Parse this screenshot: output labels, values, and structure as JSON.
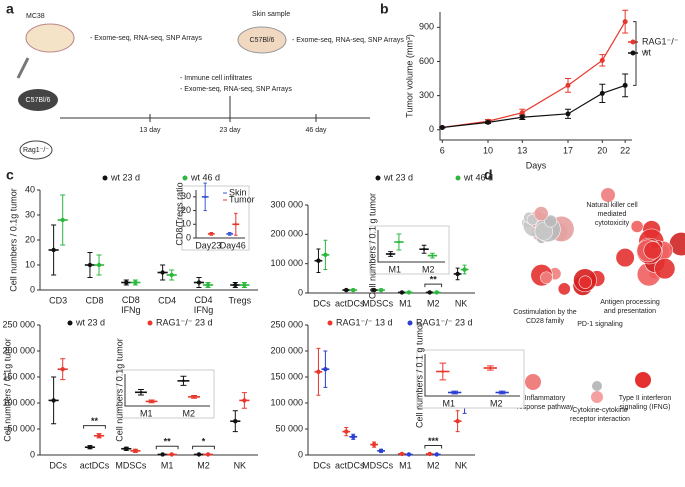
{
  "panel_labels": [
    "a",
    "b",
    "c",
    "d"
  ],
  "diagram": {
    "mc38": "MC38",
    "mc38_assays": "- Exome-seq, RNA-seq, SNP Arrays",
    "skin": "Skin sample",
    "skin_strain": "C57Bl/6",
    "skin_assays": "- Exome-seq, RNA-seq, SNP Arrays",
    "mouse_strain": "C57Bl/6",
    "rag": "Rag1⁻/⁻",
    "tumor_assays": [
      "- Immune cell infiltrates",
      "- Exome-seq, RNA-seq, SNP Arrays"
    ],
    "timepoints": [
      "13 day",
      "23 day",
      "46 day"
    ]
  },
  "network": {
    "labels": [
      [
        "Natural killer cell",
        "mediated",
        "cytotoxicity"
      ],
      [
        "Antigen processing",
        "and presentation"
      ],
      [
        "Costimulation by the",
        "CD28 family"
      ],
      [
        "PD-1 signaling"
      ],
      [
        "Inflammatory",
        "response pathway"
      ],
      [
        "Cytokine-cytokine",
        "receptor interaction"
      ],
      [
        "Type II interferon",
        "signaling (IFNG)"
      ]
    ]
  },
  "chart_data": [
    {
      "type": "line",
      "xlabel": "Days",
      "ylabel": "Tumor volume (mm³)",
      "x": [
        6,
        10,
        13,
        17,
        20,
        22
      ],
      "xlim": [
        5.8,
        22.6
      ],
      "xticks": [
        6,
        10,
        13,
        17,
        20,
        22
      ],
      "ylim": [
        -90,
        1035
      ],
      "yticks": [
        0,
        300,
        600,
        900
      ],
      "series": [
        {
          "name": "RAG1⁻/⁻",
          "color": "#e8372c",
          "values": [
            20,
            75,
            150,
            390,
            610,
            950
          ],
          "errors": [
            5,
            15,
            30,
            60,
            50,
            100
          ]
        },
        {
          "name": "wt",
          "color": "#111111",
          "values": [
            20,
            65,
            110,
            140,
            320,
            390
          ],
          "errors": [
            5,
            10,
            20,
            40,
            80,
            100
          ]
        }
      ],
      "annotations": [
        {
          "text": "*"
        }
      ]
    },
    {
      "type": "dot",
      "ylabel": "Cell numbers / 0.1g tumor",
      "categories": [
        "CD3",
        "CD8",
        "CD8 IFNg",
        "CD4",
        "CD4 IFNg",
        "Tregs"
      ],
      "ylim": [
        0,
        40
      ],
      "yticks": [
        0,
        10,
        20,
        30,
        40
      ],
      "series": [
        {
          "name": "wt 23 d",
          "color": "#111111",
          "values": [
            16,
            10,
            3,
            7,
            3,
            2
          ],
          "errors": [
            10,
            5,
            1,
            3,
            2,
            1
          ]
        },
        {
          "name": "wt 46 d",
          "color": "#2db83d",
          "values": [
            28,
            10,
            3,
            6,
            2,
            2
          ],
          "errors": [
            10,
            4,
            1,
            2,
            1,
            1
          ]
        }
      ]
    },
    {
      "type": "dot",
      "inset": true,
      "ylabel": "CD8/Tregs ratio",
      "categories": [
        "Day23",
        "Day46"
      ],
      "ylim": [
        0,
        35
      ],
      "yticks": [
        0,
        10,
        20,
        30
      ],
      "series": [
        {
          "name": "Skin",
          "color": "#3b5bd6",
          "values": [
            30,
            3
          ],
          "errors": [
            10,
            1
          ]
        },
        {
          "name": "Tumor",
          "color": "#e8372c",
          "values": [
            3,
            10
          ],
          "errors": [
            1,
            8
          ]
        }
      ]
    },
    {
      "type": "dot",
      "categories": [
        "DCs",
        "actDCs",
        "MDSCs",
        "M1",
        "M2",
        "NK"
      ],
      "ylim": [
        0,
        300000
      ],
      "yticks": [
        0,
        {
          "value": 100000,
          "label": "100 000"
        },
        {
          "value": 200000,
          "label": "200 000"
        },
        {
          "value": 300000,
          "label": "300 000"
        }
      ],
      "series": [
        {
          "name": "wt 23 d",
          "color": "#111111",
          "values": [
            110000,
            10000,
            10000,
            2000,
            2000,
            65000
          ],
          "errors": [
            40000,
            3000,
            3000,
            1000,
            1000,
            20000
          ]
        },
        {
          "name": "wt 46 d",
          "color": "#2db83d",
          "values": [
            130000,
            10000,
            10000,
            2000,
            2000,
            80000
          ],
          "errors": [
            50000,
            3000,
            3000,
            1000,
            1000,
            15000
          ]
        }
      ],
      "annotations": [
        {
          "text": "**",
          "category": "M2"
        }
      ]
    },
    {
      "type": "dot",
      "inset": true,
      "ylabel": "Cell numbers / 0.1 g tumor",
      "categories": [
        "M1",
        "M2"
      ],
      "ylim": [
        0,
        4
      ],
      "series": [
        {
          "name": "wt 23 d",
          "color": "#111111",
          "values": [
            1,
            1.6
          ],
          "errors": [
            0.3,
            0.5
          ]
        },
        {
          "name": "wt 46 d",
          "color": "#2db83d",
          "values": [
            2.5,
            0.8
          ],
          "errors": [
            1,
            0.3
          ]
        }
      ]
    },
    {
      "type": "dot",
      "ylabel": "Cell numbers / 0.1g tumor",
      "categories": [
        "DCs",
        "actDCs",
        "MDSCs",
        "M1",
        "M2",
        "NK"
      ],
      "ylim": [
        0,
        250000
      ],
      "yticks": [
        0,
        {
          "value": 50000,
          "label": "50 000"
        },
        {
          "value": 100000,
          "label": "100 000"
        },
        {
          "value": 150000,
          "label": "150 000"
        },
        {
          "value": 200000,
          "label": "200 000"
        },
        {
          "value": 250000,
          "label": "250 000"
        }
      ],
      "series": [
        {
          "name": "wt 23 d",
          "color": "#111111",
          "values": [
            105000,
            15000,
            12000,
            1000,
            1000,
            65000
          ],
          "errors": [
            45000,
            3000,
            3000,
            500,
            500,
            20000
          ]
        },
        {
          "name": "RAG1⁻/⁻ 23 d",
          "color": "#e8372c",
          "values": [
            165000,
            37000,
            8000,
            1000,
            1000,
            105000
          ],
          "errors": [
            20000,
            4000,
            3000,
            500,
            500,
            15000
          ]
        }
      ],
      "annotations": [
        {
          "text": "**",
          "category": "actDCs"
        },
        {
          "text": "**",
          "category": "M1"
        },
        {
          "text": "*",
          "category": "M2"
        }
      ]
    },
    {
      "type": "dot",
      "inset": true,
      "ylabel": "Cell numbers / 0.1g tumor",
      "categories": [
        "M1",
        "M2"
      ],
      "ylim": [
        0,
        7
      ],
      "series": [
        {
          "name": "wt 23 d",
          "color": "#111111",
          "values": [
            3,
            5.5
          ],
          "errors": [
            0.6,
            1
          ]
        },
        {
          "name": "RAG1⁻/⁻ 23 d",
          "color": "#e8372c",
          "values": [
            1,
            2
          ],
          "errors": [
            0.3,
            0.3
          ]
        }
      ]
    },
    {
      "type": "dot",
      "categories": [
        "DCs",
        "actDCs",
        "MDSCs",
        "M1",
        "M2",
        "NK"
      ],
      "ylim": [
        0,
        250000
      ],
      "yticks": [
        0,
        {
          "value": 50000,
          "label": "50 000"
        },
        {
          "value": 100000,
          "label": "100 000"
        },
        {
          "value": 150000,
          "label": "150 000"
        },
        {
          "value": 200000,
          "label": "200 000"
        },
        {
          "value": 250000,
          "label": "250 000"
        }
      ],
      "series": [
        {
          "name": "RAG1⁻/⁻ 13 d",
          "color": "#e8372c",
          "values": [
            160000,
            45000,
            20000,
            2000,
            2000,
            65000
          ],
          "errors": [
            45000,
            8000,
            5000,
            1000,
            1000,
            20000
          ]
        },
        {
          "name": "RAG1⁻/⁻ 23 d",
          "color": "#2a3fd1",
          "values": [
            165000,
            35000,
            8000,
            1000,
            1000,
            100000
          ],
          "errors": [
            35000,
            5000,
            3000,
            500,
            500,
            20000
          ]
        }
      ],
      "annotations": [
        {
          "text": "***",
          "category": "M2"
        }
      ]
    },
    {
      "type": "dot",
      "inset": true,
      "ylabel": "Cell numbers / 0.1 g tumor",
      "categories": [
        "M1",
        "M2"
      ],
      "ylim": [
        0,
        6
      ],
      "series": [
        {
          "name": "RAG1⁻/⁻ 13 d",
          "color": "#e8372c",
          "values": [
            3.5,
            4
          ],
          "errors": [
            1.2,
            0.3
          ]
        },
        {
          "name": "RAG1⁻/⁻ 23 d",
          "color": "#2a3fd1",
          "values": [
            0.5,
            0.5
          ],
          "errors": [
            0.2,
            0.2
          ]
        }
      ]
    }
  ]
}
